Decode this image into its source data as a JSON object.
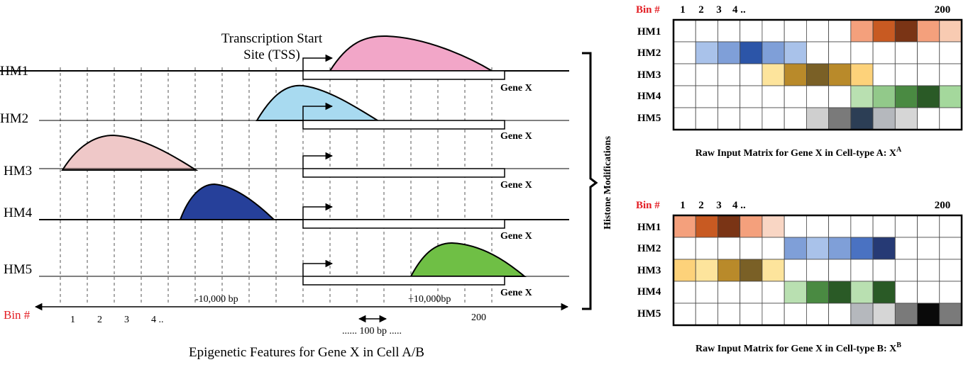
{
  "title": "Epigenetic Features for Gene X in Cell A/B",
  "tss_label": [
    "Transcription Start",
    "Site (TSS)"
  ],
  "gene_label": "Gene X",
  "bin_label": "Bin #",
  "bin_ticks": [
    "1",
    "2",
    "3",
    "4 ..",
    "200"
  ],
  "bp_left": "-10,000  bp",
  "bp_right": "+10,000bp",
  "bin_width": "...... 100 bp  .....",
  "bracket_label": "Histone Modifications",
  "tracks": [
    {
      "label": "HM1",
      "color": "#f2a6c8"
    },
    {
      "label": "HM2",
      "color": "#a8daf0"
    },
    {
      "label": "HM3",
      "color": "#efc8c8"
    },
    {
      "label": "HM4",
      "color": "#26409a"
    },
    {
      "label": "HM5",
      "color": "#6fbf45"
    }
  ],
  "matrices": [
    {
      "id": "A",
      "caption": "Raw Input Matrix for Gene X in Cell-type A: ",
      "symbol": "X",
      "superscript": "A",
      "bin_label": "Bin #",
      "col_labels": [
        "1",
        "2",
        "3",
        "4 ..",
        "200"
      ],
      "rows": [
        {
          "label": "HM1",
          "cells": [
            "#fff",
            "#fff",
            "#fff",
            "#fff",
            "#fff",
            "#fff",
            "#fff",
            "#fff",
            "#f4a07c",
            "#c85a22",
            "#7a3415",
            "#f4a07c",
            "#f8cbb2"
          ]
        },
        {
          "label": "HM2",
          "cells": [
            "#fff",
            "#a9c2ea",
            "#7f9fd8",
            "#2c55a8",
            "#7f9fd8",
            "#a9c2ea",
            "#fff",
            "#fff",
            "#fff",
            "#fff",
            "#fff",
            "#fff",
            "#fff"
          ]
        },
        {
          "label": "HM3",
          "cells": [
            "#fff",
            "#fff",
            "#fff",
            "#fff",
            "#fde49c",
            "#b98a2a",
            "#7a6026",
            "#b98a2a",
            "#fdd27a",
            "#fff",
            "#fff",
            "#fff",
            "#fff"
          ]
        },
        {
          "label": "HM4",
          "cells": [
            "#fff",
            "#fff",
            "#fff",
            "#fff",
            "#fff",
            "#fff",
            "#fff",
            "#fff",
            "#b9e0b1",
            "#92c98a",
            "#4a8a42",
            "#2a5a26",
            "#a4d89c"
          ]
        },
        {
          "label": "HM5",
          "cells": [
            "#fff",
            "#fff",
            "#fff",
            "#fff",
            "#fff",
            "#fff",
            "#cfcfcf",
            "#7a7a7a",
            "#2c3e55",
            "#b5b8bd",
            "#d6d6d6",
            "#fff",
            "#fff"
          ]
        }
      ]
    },
    {
      "id": "B",
      "caption": "Raw Input Matrix for Gene X in Cell-type B: ",
      "symbol": "X",
      "superscript": "B",
      "bin_label": "Bin #",
      "col_labels": [
        "1",
        "2",
        "3",
        "4 ..",
        "200"
      ],
      "rows": [
        {
          "label": "HM1",
          "cells": [
            "#f4a07c",
            "#c85a22",
            "#7a3415",
            "#f4a07c",
            "#f9d6c4",
            "#fff",
            "#fff",
            "#fff",
            "#fff",
            "#fff",
            "#fff",
            "#fff",
            "#fff"
          ]
        },
        {
          "label": "HM2",
          "cells": [
            "#fff",
            "#fff",
            "#fff",
            "#fff",
            "#fff",
            "#7f9fd8",
            "#a9c2ea",
            "#7f9fd8",
            "#4a72c2",
            "#263a75",
            "#fff",
            "#fff",
            "#fff"
          ]
        },
        {
          "label": "HM3",
          "cells": [
            "#fdd27a",
            "#fde49c",
            "#b98a2a",
            "#7a6026",
            "#fde49c",
            "#fff",
            "#fff",
            "#fff",
            "#fff",
            "#fff",
            "#fff",
            "#fff",
            "#fff"
          ]
        },
        {
          "label": "HM4",
          "cells": [
            "#fff",
            "#fff",
            "#fff",
            "#fff",
            "#fff",
            "#b9e0b1",
            "#4a8a42",
            "#2a5a26",
            "#b9e0b1",
            "#2a5a26",
            "#fff",
            "#fff",
            "#fff"
          ]
        },
        {
          "label": "HM5",
          "cells": [
            "#fff",
            "#fff",
            "#fff",
            "#fff",
            "#fff",
            "#fff",
            "#fff",
            "#fff",
            "#b5b8bd",
            "#d6d6d6",
            "#7a7a7a",
            "#0a0a0a",
            "#7a7a7a"
          ]
        }
      ]
    }
  ]
}
